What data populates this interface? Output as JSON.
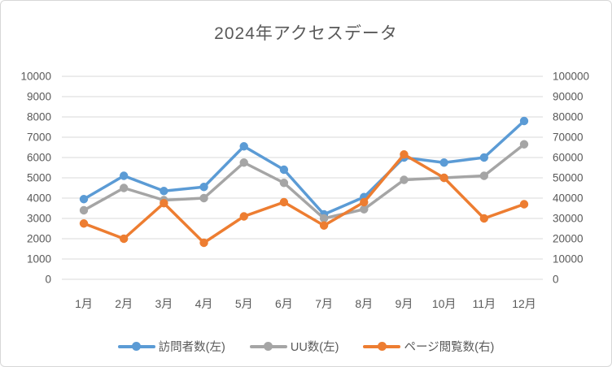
{
  "title": "2024年アクセスデータ",
  "colors": {
    "visitors_blue": "#5B9BD5",
    "uu_gray": "#A5A5A5",
    "pageviews_orange": "#ED7D31",
    "text_gray": "#595959",
    "gridline": "#D9D9D9",
    "frame_border": "#D7D7D7",
    "background": "#FFFFFF"
  },
  "chart_data": {
    "type": "line",
    "title": "2024年アクセスデータ",
    "categories": [
      "1月",
      "2月",
      "3月",
      "4月",
      "5月",
      "6月",
      "7月",
      "8月",
      "9月",
      "10月",
      "11月",
      "12月"
    ],
    "series": [
      {
        "name": "訪問者数(左)",
        "axis": "left",
        "color": "#5B9BD5",
        "values": [
          3950,
          5100,
          4350,
          4550,
          6550,
          5400,
          3200,
          4050,
          6000,
          5750,
          6000,
          7800
        ]
      },
      {
        "name": "UU数(左)",
        "axis": "left",
        "color": "#A5A5A5",
        "values": [
          3400,
          4500,
          3900,
          4000,
          5750,
          4750,
          3000,
          3450,
          4900,
          5000,
          5100,
          6650
        ]
      },
      {
        "name": "ページ閲覧数(右)",
        "axis": "right",
        "color": "#ED7D31",
        "values": [
          27500,
          20000,
          37500,
          18000,
          31000,
          38000,
          26500,
          38000,
          61500,
          50000,
          30000,
          37000
        ]
      }
    ],
    "left_axis": {
      "min": 0,
      "max": 10000,
      "step": 1000,
      "ticks": [
        0,
        1000,
        2000,
        3000,
        4000,
        5000,
        6000,
        7000,
        8000,
        9000,
        10000
      ]
    },
    "right_axis": {
      "min": 0,
      "max": 100000,
      "step": 10000,
      "ticks": [
        0,
        10000,
        20000,
        30000,
        40000,
        50000,
        60000,
        70000,
        80000,
        90000,
        100000
      ]
    },
    "grid": true,
    "legend_position": "bottom",
    "marker": "circle",
    "line_width": 3.5
  }
}
